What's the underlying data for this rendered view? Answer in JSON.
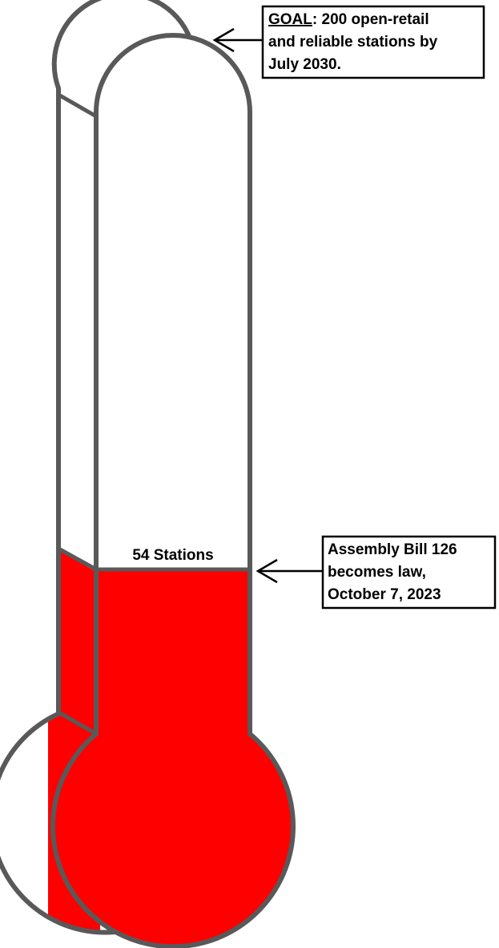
{
  "goal": {
    "label": "GOAL",
    "lines": [
      ": 200 open-retail",
      "and reliable stations by",
      "July 2030."
    ]
  },
  "level_label": "54 Stations",
  "annotation": {
    "lines": [
      "Assembly Bill 126",
      "becomes law,",
      "October 7, 2023"
    ]
  }
}
